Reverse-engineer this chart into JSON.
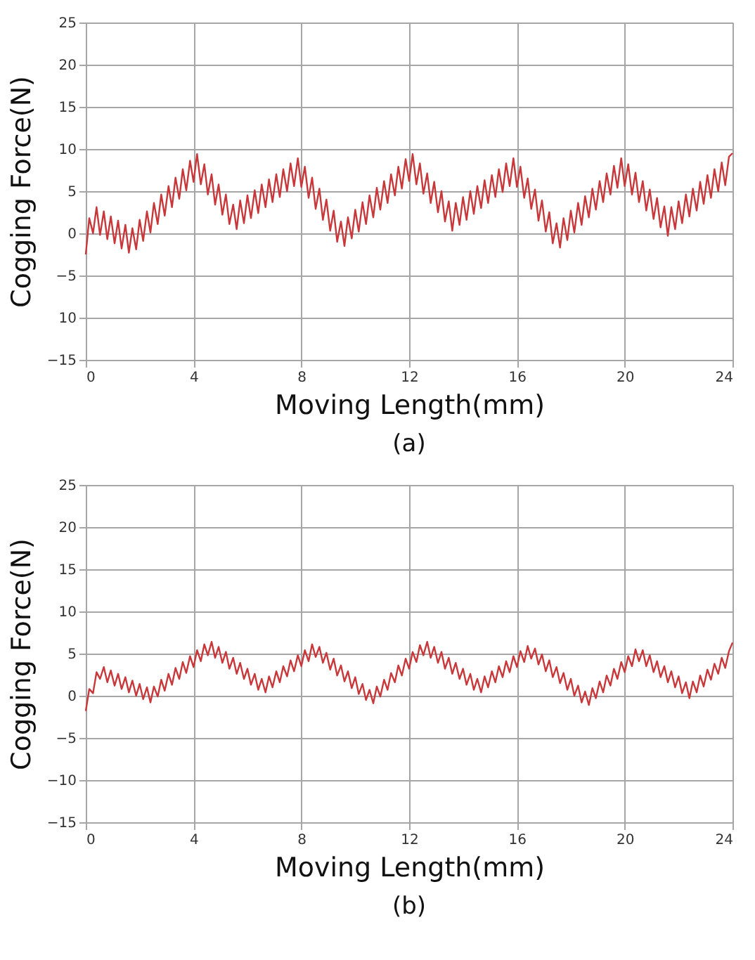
{
  "chart_data": [
    {
      "type": "line",
      "xlabel": "Moving Length(mm)",
      "ylabel": "Cogging Force(N)",
      "annotations": [
        "(a)"
      ],
      "grid": true,
      "marker": "none",
      "line_style": "solid",
      "xlim": [
        0,
        24
      ],
      "xticks": [
        0,
        4,
        8,
        12,
        16,
        20,
        24
      ],
      "ylim": [
        -15,
        25
      ],
      "yticks": [
        -15,
        {
          "value": -10,
          "label": "10"
        },
        -5,
        0,
        5,
        10,
        15,
        20,
        25
      ],
      "x": [
        0,
        0.13,
        0.27,
        0.4,
        0.53,
        0.67,
        0.8,
        0.93,
        1.07,
        1.2,
        1.33,
        1.47,
        1.6,
        1.73,
        1.87,
        2,
        2.13,
        2.27,
        2.4,
        2.53,
        2.67,
        2.8,
        2.93,
        3.07,
        3.2,
        3.33,
        3.47,
        3.6,
        3.73,
        3.87,
        4,
        4.13,
        4.27,
        4.4,
        4.53,
        4.67,
        4.8,
        4.93,
        5.07,
        5.2,
        5.33,
        5.47,
        5.6,
        5.73,
        5.87,
        6,
        6.13,
        6.27,
        6.4,
        6.53,
        6.67,
        6.8,
        6.93,
        7.07,
        7.2,
        7.33,
        7.47,
        7.6,
        7.73,
        7.87,
        8,
        8.13,
        8.27,
        8.4,
        8.53,
        8.67,
        8.8,
        8.93,
        9.07,
        9.2,
        9.33,
        9.47,
        9.6,
        9.73,
        9.87,
        10,
        10.13,
        10.27,
        10.4,
        10.53,
        10.67,
        10.8,
        10.93,
        11.07,
        11.2,
        11.33,
        11.47,
        11.6,
        11.73,
        11.87,
        12,
        12.13,
        12.27,
        12.4,
        12.53,
        12.67,
        12.8,
        12.93,
        13.07,
        13.2,
        13.33,
        13.47,
        13.6,
        13.73,
        13.87,
        14,
        14.13,
        14.27,
        14.4,
        14.53,
        14.67,
        14.8,
        14.93,
        15.07,
        15.2,
        15.33,
        15.47,
        15.6,
        15.73,
        15.87,
        16,
        16.13,
        16.27,
        16.4,
        16.53,
        16.67,
        16.8,
        16.93,
        17.07,
        17.2,
        17.33,
        17.47,
        17.6,
        17.73,
        17.87,
        18,
        18.13,
        18.27,
        18.4,
        18.53,
        18.67,
        18.8,
        18.93,
        19.07,
        19.2,
        19.33,
        19.47,
        19.6,
        19.73,
        19.87,
        20,
        20.13,
        20.27,
        20.4,
        20.53,
        20.67,
        20.8,
        20.93,
        21.07,
        21.2,
        21.33,
        21.47,
        21.6,
        21.73,
        21.87,
        22,
        22.13,
        22.27,
        22.4,
        22.53,
        22.67,
        22.8,
        22.93,
        23.07,
        23.2,
        23.33,
        23.47,
        23.6,
        23.73,
        23.87,
        24
      ],
      "series": [
        {
          "color": "#c8373a",
          "values": [
            -2.5,
            1.8,
            0.0,
            3.1,
            -0.2,
            2.6,
            -0.7,
            2.0,
            -1.2,
            1.5,
            -1.8,
            1.0,
            -2.3,
            0.6,
            -1.9,
            1.6,
            -0.9,
            2.6,
            0.1,
            3.6,
            1.1,
            4.6,
            2.1,
            5.6,
            3.1,
            6.6,
            4.1,
            7.6,
            5.1,
            8.6,
            6.1,
            9.4,
            5.8,
            8.2,
            4.6,
            7.0,
            3.4,
            5.8,
            2.2,
            4.6,
            1.1,
            3.4,
            0.5,
            3.9,
            1.2,
            4.5,
            1.8,
            5.1,
            2.4,
            5.8,
            3.1,
            6.4,
            3.7,
            7.0,
            4.3,
            7.6,
            5.0,
            8.3,
            5.6,
            8.9,
            5.5,
            7.9,
            4.2,
            6.6,
            2.9,
            5.3,
            1.6,
            4.0,
            0.3,
            2.7,
            -1.0,
            1.4,
            -1.5,
            1.9,
            -0.6,
            2.8,
            0.2,
            3.7,
            1.1,
            4.5,
            1.9,
            5.4,
            2.8,
            6.2,
            3.6,
            7.0,
            4.5,
            7.9,
            5.3,
            8.8,
            6.2,
            9.4,
            5.8,
            8.3,
            4.7,
            7.1,
            3.6,
            6.1,
            2.5,
            5.0,
            1.4,
            3.8,
            0.3,
            3.6,
            1.0,
            4.3,
            1.6,
            5.0,
            2.3,
            5.6,
            3.0,
            6.3,
            3.6,
            6.9,
            4.3,
            7.6,
            4.9,
            8.3,
            5.6,
            8.9,
            5.5,
            7.9,
            4.2,
            6.5,
            2.9,
            5.2,
            1.5,
            3.9,
            0.2,
            2.5,
            -1.2,
            1.2,
            -1.7,
            1.8,
            -0.8,
            2.7,
            0.1,
            3.6,
            1.0,
            4.4,
            1.9,
            5.3,
            2.8,
            6.2,
            3.7,
            7.1,
            4.6,
            8.0,
            5.4,
            8.9,
            5.6,
            8.2,
            4.6,
            7.2,
            3.7,
            6.2,
            2.7,
            5.2,
            1.7,
            4.2,
            0.7,
            3.2,
            -0.3,
            3.1,
            0.5,
            3.8,
            1.2,
            4.6,
            2.0,
            5.3,
            2.7,
            6.1,
            3.5,
            6.9,
            4.2,
            7.6,
            5.0,
            8.4,
            5.7,
            9.1,
            9.5
          ]
        }
      ]
    },
    {
      "type": "line",
      "xlabel": "Moving Length(mm)",
      "ylabel": "Cogging Force(N)",
      "annotations": [
        "(b)"
      ],
      "grid": true,
      "marker": "none",
      "line_style": "solid",
      "xlim": [
        0,
        24
      ],
      "xticks": [
        0,
        4,
        8,
        12,
        16,
        20,
        24
      ],
      "ylim": [
        -15,
        25
      ],
      "yticks": [
        -15,
        -10,
        -5,
        0,
        5,
        10,
        15,
        20,
        25
      ],
      "x": [
        0,
        0.13,
        0.27,
        0.4,
        0.53,
        0.67,
        0.8,
        0.93,
        1.07,
        1.2,
        1.33,
        1.47,
        1.6,
        1.73,
        1.87,
        2,
        2.13,
        2.27,
        2.4,
        2.53,
        2.67,
        2.8,
        2.93,
        3.07,
        3.2,
        3.33,
        3.47,
        3.6,
        3.73,
        3.87,
        4,
        4.13,
        4.27,
        4.4,
        4.53,
        4.67,
        4.8,
        4.93,
        5.07,
        5.2,
        5.33,
        5.47,
        5.6,
        5.73,
        5.87,
        6,
        6.13,
        6.27,
        6.4,
        6.53,
        6.67,
        6.8,
        6.93,
        7.07,
        7.2,
        7.33,
        7.47,
        7.6,
        7.73,
        7.87,
        8,
        8.13,
        8.27,
        8.4,
        8.53,
        8.67,
        8.8,
        8.93,
        9.07,
        9.2,
        9.33,
        9.47,
        9.6,
        9.73,
        9.87,
        10,
        10.13,
        10.27,
        10.4,
        10.53,
        10.67,
        10.8,
        10.93,
        11.07,
        11.2,
        11.33,
        11.47,
        11.6,
        11.73,
        11.87,
        12,
        12.13,
        12.27,
        12.4,
        12.53,
        12.67,
        12.8,
        12.93,
        13.07,
        13.2,
        13.33,
        13.47,
        13.6,
        13.73,
        13.87,
        14,
        14.13,
        14.27,
        14.4,
        14.53,
        14.67,
        14.8,
        14.93,
        15.07,
        15.2,
        15.33,
        15.47,
        15.6,
        15.73,
        15.87,
        16,
        16.13,
        16.27,
        16.4,
        16.53,
        16.67,
        16.8,
        16.93,
        17.07,
        17.2,
        17.33,
        17.47,
        17.6,
        17.73,
        17.87,
        18,
        18.13,
        18.27,
        18.4,
        18.53,
        18.67,
        18.8,
        18.93,
        19.07,
        19.2,
        19.33,
        19.47,
        19.6,
        19.73,
        19.87,
        20,
        20.13,
        20.27,
        20.4,
        20.53,
        20.67,
        20.8,
        20.93,
        21.07,
        21.2,
        21.33,
        21.47,
        21.6,
        21.73,
        21.87,
        22,
        22.13,
        22.27,
        22.4,
        22.53,
        22.67,
        22.8,
        22.93,
        23.07,
        23.2,
        23.33,
        23.47,
        23.6,
        23.73,
        23.87,
        24
      ],
      "series": [
        {
          "color": "#c8373a",
          "values": [
            -1.8,
            0.8,
            0.3,
            2.8,
            2.0,
            3.4,
            1.6,
            3.0,
            1.2,
            2.6,
            0.8,
            2.2,
            0.4,
            1.8,
            0.0,
            1.4,
            -0.4,
            1.0,
            -0.8,
            1.1,
            -0.1,
            1.9,
            0.6,
            2.6,
            1.3,
            3.3,
            2.0,
            4.0,
            2.7,
            4.7,
            3.4,
            5.4,
            4.1,
            6.1,
            4.8,
            6.4,
            4.5,
            5.8,
            3.9,
            5.2,
            3.2,
            4.5,
            2.6,
            3.9,
            2.0,
            3.2,
            1.3,
            2.6,
            0.7,
            2.0,
            0.4,
            2.3,
            1.0,
            2.9,
            1.6,
            3.5,
            2.3,
            4.2,
            2.9,
            4.8,
            3.5,
            5.4,
            4.1,
            6.1,
            4.6,
            5.8,
            3.9,
            5.1,
            3.1,
            4.4,
            2.4,
            3.6,
            1.7,
            2.9,
            0.9,
            2.2,
            0.2,
            1.4,
            -0.5,
            0.7,
            -0.9,
            1.1,
            -0.1,
            1.9,
            0.7,
            2.7,
            1.6,
            3.6,
            2.4,
            4.4,
            3.2,
            5.2,
            4.0,
            6.0,
            4.8,
            6.4,
            4.5,
            5.8,
            3.9,
            5.2,
            3.2,
            4.5,
            2.6,
            3.9,
            2.0,
            3.2,
            1.3,
            2.6,
            0.7,
            2.0,
            0.4,
            2.3,
            1.0,
            2.9,
            1.6,
            3.5,
            2.2,
            4.1,
            2.8,
            4.7,
            3.4,
            5.3,
            4.0,
            5.9,
            4.4,
            5.6,
            3.7,
            4.9,
            2.9,
            4.2,
            2.2,
            3.4,
            1.5,
            2.7,
            0.7,
            2.0,
            0.0,
            1.2,
            -0.8,
            0.5,
            -1.1,
            0.9,
            -0.3,
            1.7,
            0.4,
            2.4,
            1.2,
            3.2,
            2.0,
            4.0,
            2.8,
            4.7,
            3.5,
            5.5,
            4.1,
            5.4,
            3.5,
            4.8,
            2.8,
            4.1,
            2.2,
            3.5,
            1.6,
            2.9,
            1.0,
            2.3,
            0.3,
            1.6,
            -0.3,
            1.7,
            0.4,
            2.4,
            1.1,
            3.1,
            1.9,
            3.8,
            2.6,
            4.5,
            3.3,
            5.3,
            6.3
          ]
        }
      ]
    }
  ]
}
